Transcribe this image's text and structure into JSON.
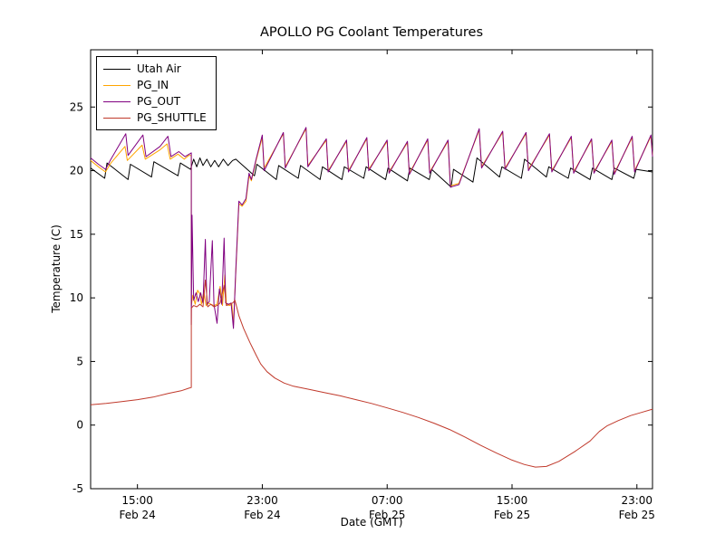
{
  "figure": {
    "title": "APOLLO PG Coolant Temperatures",
    "xlabel": "Date (GMT)",
    "ylabel": "Temperature (C)"
  },
  "chart_data": {
    "type": "line",
    "title": "APOLLO PG Coolant Temperatures",
    "xlabel": "Date (GMT)",
    "ylabel": "Temperature (C)",
    "x_unit": "hours since Feb 24 12:00 GMT",
    "xlim": [
      0,
      36
    ],
    "ylim": [
      -5,
      29.5
    ],
    "grid": false,
    "legend_position": "upper left",
    "xticks": [
      {
        "t": 3,
        "time": "15:00",
        "date": "Feb 24"
      },
      {
        "t": 11,
        "time": "23:00",
        "date": "Feb 24"
      },
      {
        "t": 19,
        "time": "07:00",
        "date": "Feb 25"
      },
      {
        "t": 27,
        "time": "15:00",
        "date": "Feb 25"
      },
      {
        "t": 35,
        "time": "23:00",
        "date": "Feb 25"
      }
    ],
    "yticks": [
      -5,
      0,
      5,
      10,
      15,
      20,
      25
    ],
    "series": [
      {
        "name": "Utah Air",
        "color": "#000000",
        "points": [
          [
            0,
            20.2
          ],
          [
            0.9,
            19.4
          ],
          [
            1.05,
            20.6
          ],
          [
            2.4,
            19.3
          ],
          [
            2.55,
            20.5
          ],
          [
            3.9,
            19.5
          ],
          [
            4.05,
            20.7
          ],
          [
            5.6,
            19.6
          ],
          [
            5.75,
            20.6
          ],
          [
            6.4,
            20.1
          ],
          [
            6.6,
            20.9
          ],
          [
            6.8,
            20.3
          ],
          [
            7.0,
            21.0
          ],
          [
            7.2,
            20.4
          ],
          [
            7.45,
            20.9
          ],
          [
            7.7,
            20.3
          ],
          [
            7.95,
            20.8
          ],
          [
            8.2,
            20.3
          ],
          [
            8.5,
            20.9
          ],
          [
            8.8,
            20.4
          ],
          [
            9.1,
            20.8
          ],
          [
            9.3,
            20.9
          ],
          [
            10.5,
            19.6
          ],
          [
            10.65,
            20.5
          ],
          [
            11.9,
            19.3
          ],
          [
            12.05,
            20.4
          ],
          [
            13.3,
            19.4
          ],
          [
            13.45,
            20.4
          ],
          [
            14.7,
            19.3
          ],
          [
            14.85,
            20.3
          ],
          [
            16.1,
            19.3
          ],
          [
            16.25,
            20.3
          ],
          [
            17.5,
            19.4
          ],
          [
            17.65,
            20.3
          ],
          [
            18.9,
            19.3
          ],
          [
            19.05,
            20.2
          ],
          [
            20.3,
            19.2
          ],
          [
            20.45,
            20.2
          ],
          [
            21.7,
            19.3
          ],
          [
            21.85,
            20.1
          ],
          [
            23.1,
            18.7
          ],
          [
            23.25,
            20.1
          ],
          [
            24.5,
            19.1
          ],
          [
            24.75,
            21.0
          ],
          [
            26.2,
            19.5
          ],
          [
            26.35,
            20.3
          ],
          [
            27.6,
            19.4
          ],
          [
            27.8,
            20.9
          ],
          [
            29.2,
            19.5
          ],
          [
            29.35,
            20.3
          ],
          [
            30.6,
            19.4
          ],
          [
            30.75,
            20.2
          ],
          [
            32.0,
            19.3
          ],
          [
            32.15,
            20.2
          ],
          [
            33.4,
            19.3
          ],
          [
            33.55,
            20.2
          ],
          [
            34.8,
            19.4
          ],
          [
            34.95,
            20.1
          ],
          [
            36,
            19.9
          ]
        ]
      },
      {
        "name": "PG_IN",
        "color": "#ffa500",
        "points": [
          [
            0,
            20.8
          ],
          [
            0.5,
            20.3
          ],
          [
            0.95,
            19.9
          ],
          [
            1.3,
            20.6
          ],
          [
            2.2,
            21.9
          ],
          [
            2.35,
            20.8
          ],
          [
            3.3,
            22.0
          ],
          [
            3.5,
            20.9
          ],
          [
            4.4,
            21.6
          ],
          [
            4.9,
            22.1
          ],
          [
            5.1,
            20.9
          ],
          [
            5.6,
            21.3
          ],
          [
            6.0,
            20.9
          ],
          [
            6.3,
            21.2
          ],
          [
            6.45,
            21.2
          ],
          [
            6.45,
            9.4
          ],
          [
            6.55,
            10.2
          ],
          [
            6.7,
            9.5
          ],
          [
            6.85,
            10.6
          ],
          [
            7.0,
            10.3
          ],
          [
            7.1,
            9.5
          ],
          [
            7.25,
            10.5
          ],
          [
            7.4,
            9.4
          ],
          [
            7.55,
            9.6
          ],
          [
            7.7,
            9.5
          ],
          [
            7.9,
            9.4
          ],
          [
            8.1,
            9.5
          ],
          [
            8.3,
            10.9
          ],
          [
            8.45,
            9.4
          ],
          [
            8.6,
            11.8
          ],
          [
            8.7,
            9.5
          ],
          [
            8.9,
            9.4
          ],
          [
            9.05,
            9.5
          ],
          [
            9.15,
            7.9
          ],
          [
            9.3,
            12.0
          ],
          [
            9.5,
            17.4
          ],
          [
            9.7,
            17.2
          ],
          [
            9.95,
            17.6
          ],
          [
            10.15,
            19.6
          ],
          [
            10.3,
            19.2
          ],
          [
            10.6,
            20.8
          ],
          [
            11.0,
            22.6
          ],
          [
            11.12,
            20.2
          ],
          [
            12.35,
            22.9
          ],
          [
            12.47,
            20.3
          ],
          [
            13.8,
            23.3
          ],
          [
            13.92,
            20.4
          ],
          [
            15.1,
            22.4
          ],
          [
            15.22,
            20.0
          ],
          [
            16.4,
            22.3
          ],
          [
            16.52,
            20.0
          ],
          [
            17.7,
            22.5
          ],
          [
            17.82,
            20.1
          ],
          [
            19.0,
            22.3
          ],
          [
            19.12,
            19.9
          ],
          [
            20.3,
            22.2
          ],
          [
            20.42,
            19.8
          ],
          [
            21.6,
            22.4
          ],
          [
            21.72,
            19.9
          ],
          [
            22.9,
            22.3
          ],
          [
            23.05,
            18.8
          ],
          [
            23.6,
            19.0
          ],
          [
            24.9,
            23.2
          ],
          [
            25.05,
            20.3
          ],
          [
            26.4,
            23.0
          ],
          [
            26.55,
            20.2
          ],
          [
            27.9,
            22.9
          ],
          [
            28.05,
            20.1
          ],
          [
            29.4,
            22.8
          ],
          [
            29.55,
            20.0
          ],
          [
            30.8,
            22.6
          ],
          [
            30.95,
            19.9
          ],
          [
            32.1,
            22.4
          ],
          [
            32.25,
            19.9
          ],
          [
            33.4,
            22.3
          ],
          [
            33.55,
            19.8
          ],
          [
            34.7,
            22.6
          ],
          [
            34.85,
            20.0
          ],
          [
            35.9,
            22.7
          ],
          [
            36,
            21.2
          ]
        ]
      },
      {
        "name": "PG_OUT",
        "color": "#800080",
        "points": [
          [
            0,
            21.0
          ],
          [
            0.5,
            20.5
          ],
          [
            0.95,
            20.1
          ],
          [
            1.3,
            20.9
          ],
          [
            2.25,
            22.9
          ],
          [
            2.4,
            21.2
          ],
          [
            3.35,
            22.8
          ],
          [
            3.55,
            21.1
          ],
          [
            4.45,
            21.9
          ],
          [
            4.95,
            22.7
          ],
          [
            5.15,
            21.1
          ],
          [
            5.65,
            21.5
          ],
          [
            6.05,
            21.1
          ],
          [
            6.45,
            21.4
          ],
          [
            6.45,
            7.9
          ],
          [
            6.5,
            16.5
          ],
          [
            6.6,
            9.8
          ],
          [
            6.75,
            10.4
          ],
          [
            6.9,
            9.7
          ],
          [
            7.05,
            10.4
          ],
          [
            7.2,
            9.6
          ],
          [
            7.35,
            14.6
          ],
          [
            7.45,
            9.5
          ],
          [
            7.6,
            9.7
          ],
          [
            7.8,
            14.5
          ],
          [
            7.9,
            9.5
          ],
          [
            8.1,
            8.0
          ],
          [
            8.25,
            10.7
          ],
          [
            8.4,
            9.5
          ],
          [
            8.55,
            14.7
          ],
          [
            8.65,
            9.6
          ],
          [
            8.85,
            9.5
          ],
          [
            9.0,
            9.6
          ],
          [
            9.15,
            7.6
          ],
          [
            9.3,
            12.2
          ],
          [
            9.5,
            17.6
          ],
          [
            9.7,
            17.3
          ],
          [
            9.95,
            17.8
          ],
          [
            10.15,
            19.8
          ],
          [
            10.3,
            19.3
          ],
          [
            10.6,
            20.9
          ],
          [
            11.0,
            22.8
          ],
          [
            11.12,
            20.0
          ],
          [
            12.35,
            23.0
          ],
          [
            12.47,
            20.2
          ],
          [
            13.8,
            23.4
          ],
          [
            13.92,
            20.3
          ],
          [
            15.1,
            22.5
          ],
          [
            15.22,
            19.9
          ],
          [
            16.4,
            22.4
          ],
          [
            16.52,
            19.9
          ],
          [
            17.7,
            22.6
          ],
          [
            17.82,
            20.0
          ],
          [
            19.0,
            22.4
          ],
          [
            19.12,
            19.8
          ],
          [
            20.3,
            22.3
          ],
          [
            20.42,
            19.7
          ],
          [
            21.6,
            22.5
          ],
          [
            21.72,
            19.8
          ],
          [
            22.9,
            22.4
          ],
          [
            23.05,
            18.7
          ],
          [
            23.6,
            18.9
          ],
          [
            24.9,
            23.3
          ],
          [
            25.05,
            20.2
          ],
          [
            26.4,
            23.1
          ],
          [
            26.55,
            20.1
          ],
          [
            27.9,
            23.0
          ],
          [
            28.05,
            20.0
          ],
          [
            29.4,
            22.9
          ],
          [
            29.55,
            19.9
          ],
          [
            30.8,
            22.7
          ],
          [
            30.95,
            19.8
          ],
          [
            32.1,
            22.5
          ],
          [
            32.25,
            19.8
          ],
          [
            33.4,
            22.4
          ],
          [
            33.55,
            19.7
          ],
          [
            34.7,
            22.7
          ],
          [
            34.85,
            19.9
          ],
          [
            35.9,
            22.8
          ],
          [
            36,
            21.1
          ]
        ]
      },
      {
        "name": "PG_SHUTTLE",
        "color": "#c0392b",
        "points": [
          [
            0,
            1.6
          ],
          [
            1.0,
            1.7
          ],
          [
            2.0,
            1.85
          ],
          [
            3.0,
            2.0
          ],
          [
            4.0,
            2.2
          ],
          [
            5.0,
            2.5
          ],
          [
            5.8,
            2.7
          ],
          [
            6.3,
            2.9
          ],
          [
            6.45,
            2.95
          ],
          [
            6.45,
            9.2
          ],
          [
            6.6,
            9.4
          ],
          [
            6.8,
            9.3
          ],
          [
            7.0,
            9.5
          ],
          [
            7.2,
            9.3
          ],
          [
            7.35,
            11.4
          ],
          [
            7.5,
            9.3
          ],
          [
            7.7,
            9.5
          ],
          [
            7.9,
            9.3
          ],
          [
            8.1,
            9.4
          ],
          [
            8.3,
            9.6
          ],
          [
            8.55,
            11.0
          ],
          [
            8.7,
            9.4
          ],
          [
            8.9,
            9.5
          ],
          [
            9.1,
            9.6
          ],
          [
            9.25,
            9.8
          ],
          [
            9.5,
            8.6
          ],
          [
            9.8,
            7.6
          ],
          [
            10.2,
            6.5
          ],
          [
            10.6,
            5.5
          ],
          [
            10.9,
            4.8
          ],
          [
            11.3,
            4.2
          ],
          [
            11.8,
            3.7
          ],
          [
            12.4,
            3.3
          ],
          [
            13.0,
            3.05
          ],
          [
            14.0,
            2.8
          ],
          [
            15.0,
            2.55
          ],
          [
            16.0,
            2.3
          ],
          [
            17.0,
            2.0
          ],
          [
            18.0,
            1.7
          ],
          [
            19.0,
            1.35
          ],
          [
            20.0,
            1.0
          ],
          [
            21.0,
            0.6
          ],
          [
            22.0,
            0.15
          ],
          [
            23.0,
            -0.35
          ],
          [
            24.0,
            -0.95
          ],
          [
            25.0,
            -1.6
          ],
          [
            26.0,
            -2.2
          ],
          [
            27.0,
            -2.75
          ],
          [
            27.8,
            -3.1
          ],
          [
            28.5,
            -3.3
          ],
          [
            29.2,
            -3.25
          ],
          [
            30.0,
            -2.85
          ],
          [
            31.0,
            -2.1
          ],
          [
            32.0,
            -1.25
          ],
          [
            32.6,
            -0.5
          ],
          [
            33.1,
            -0.05
          ],
          [
            33.8,
            0.35
          ],
          [
            34.6,
            0.75
          ],
          [
            35.3,
            1.0
          ],
          [
            36,
            1.25
          ]
        ]
      }
    ]
  }
}
